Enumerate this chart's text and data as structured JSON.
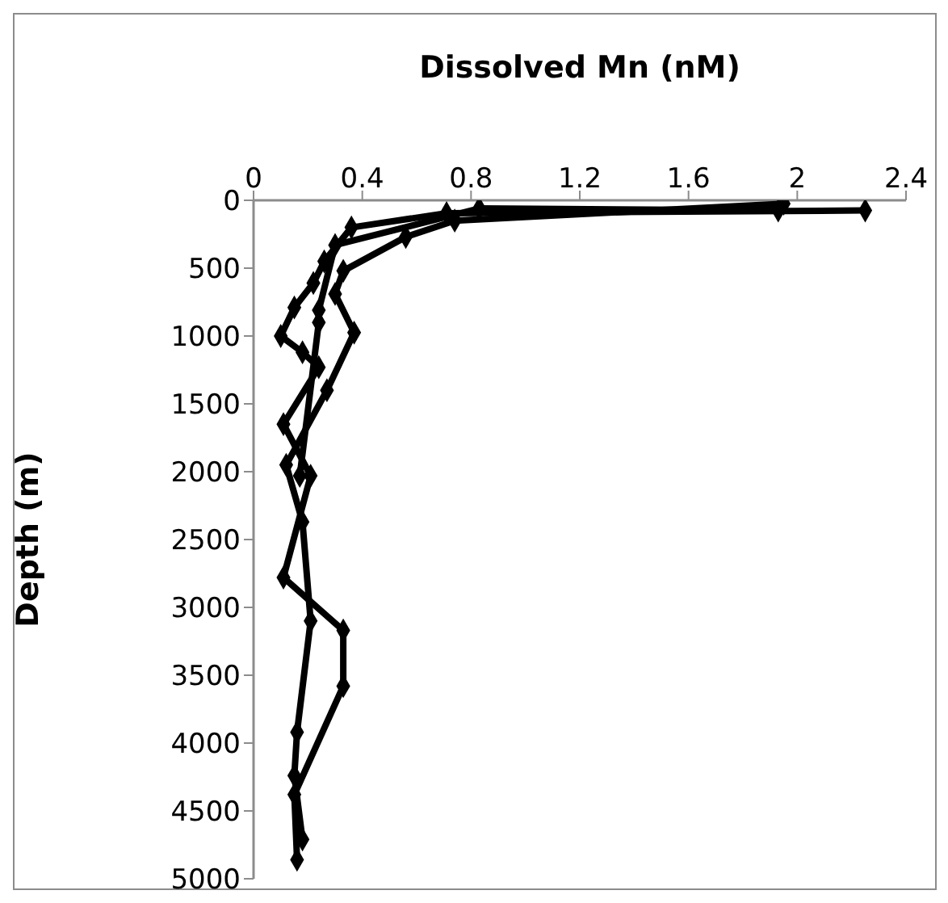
{
  "chart_data": {
    "type": "line",
    "xlabel": "Dissolved Mn (nM)",
    "ylabel": "Depth (m)",
    "series": [
      {
        "color": "#000000",
        "x": [
          1.95,
          0.74,
          0.56,
          0.33,
          0.3,
          0.37,
          0.27,
          0.12,
          0.18,
          0.21,
          0.16,
          0.15,
          0.18
        ],
        "values": [
          25,
          150,
          270,
          520,
          690,
          975,
          1400,
          1950,
          2370,
          3100,
          3920,
          4240,
          4710
        ]
      },
      {
        "color": "#000000",
        "x": [
          2.25,
          0.71,
          0.36,
          0.26,
          0.22,
          0.15,
          0.1,
          0.18,
          0.24,
          0.11,
          0.21,
          0.11,
          0.33,
          0.33,
          0.15,
          0.16
        ],
        "values": [
          75,
          95,
          200,
          450,
          610,
          790,
          1000,
          1120,
          1230,
          1650,
          2030,
          2780,
          3170,
          3580,
          4380,
          4860
        ]
      },
      {
        "color": "#000000",
        "x": [
          1.93,
          0.83,
          0.3,
          0.24,
          0.24,
          0.17
        ],
        "values": [
          75,
          60,
          330,
          810,
          900,
          2030
        ]
      }
    ],
    "xlim": [
      0,
      2.4
    ],
    "xticks": [
      0,
      0.4,
      0.8,
      1.2,
      1.6,
      2,
      2.4
    ],
    "ylim": [
      5000,
      0
    ],
    "yticks": [
      0,
      500,
      1000,
      1500,
      2000,
      2500,
      3000,
      3500,
      4000,
      4500,
      5000
    ],
    "marker": "diamond",
    "line_style": "solid",
    "grid": false,
    "legend": false
  }
}
